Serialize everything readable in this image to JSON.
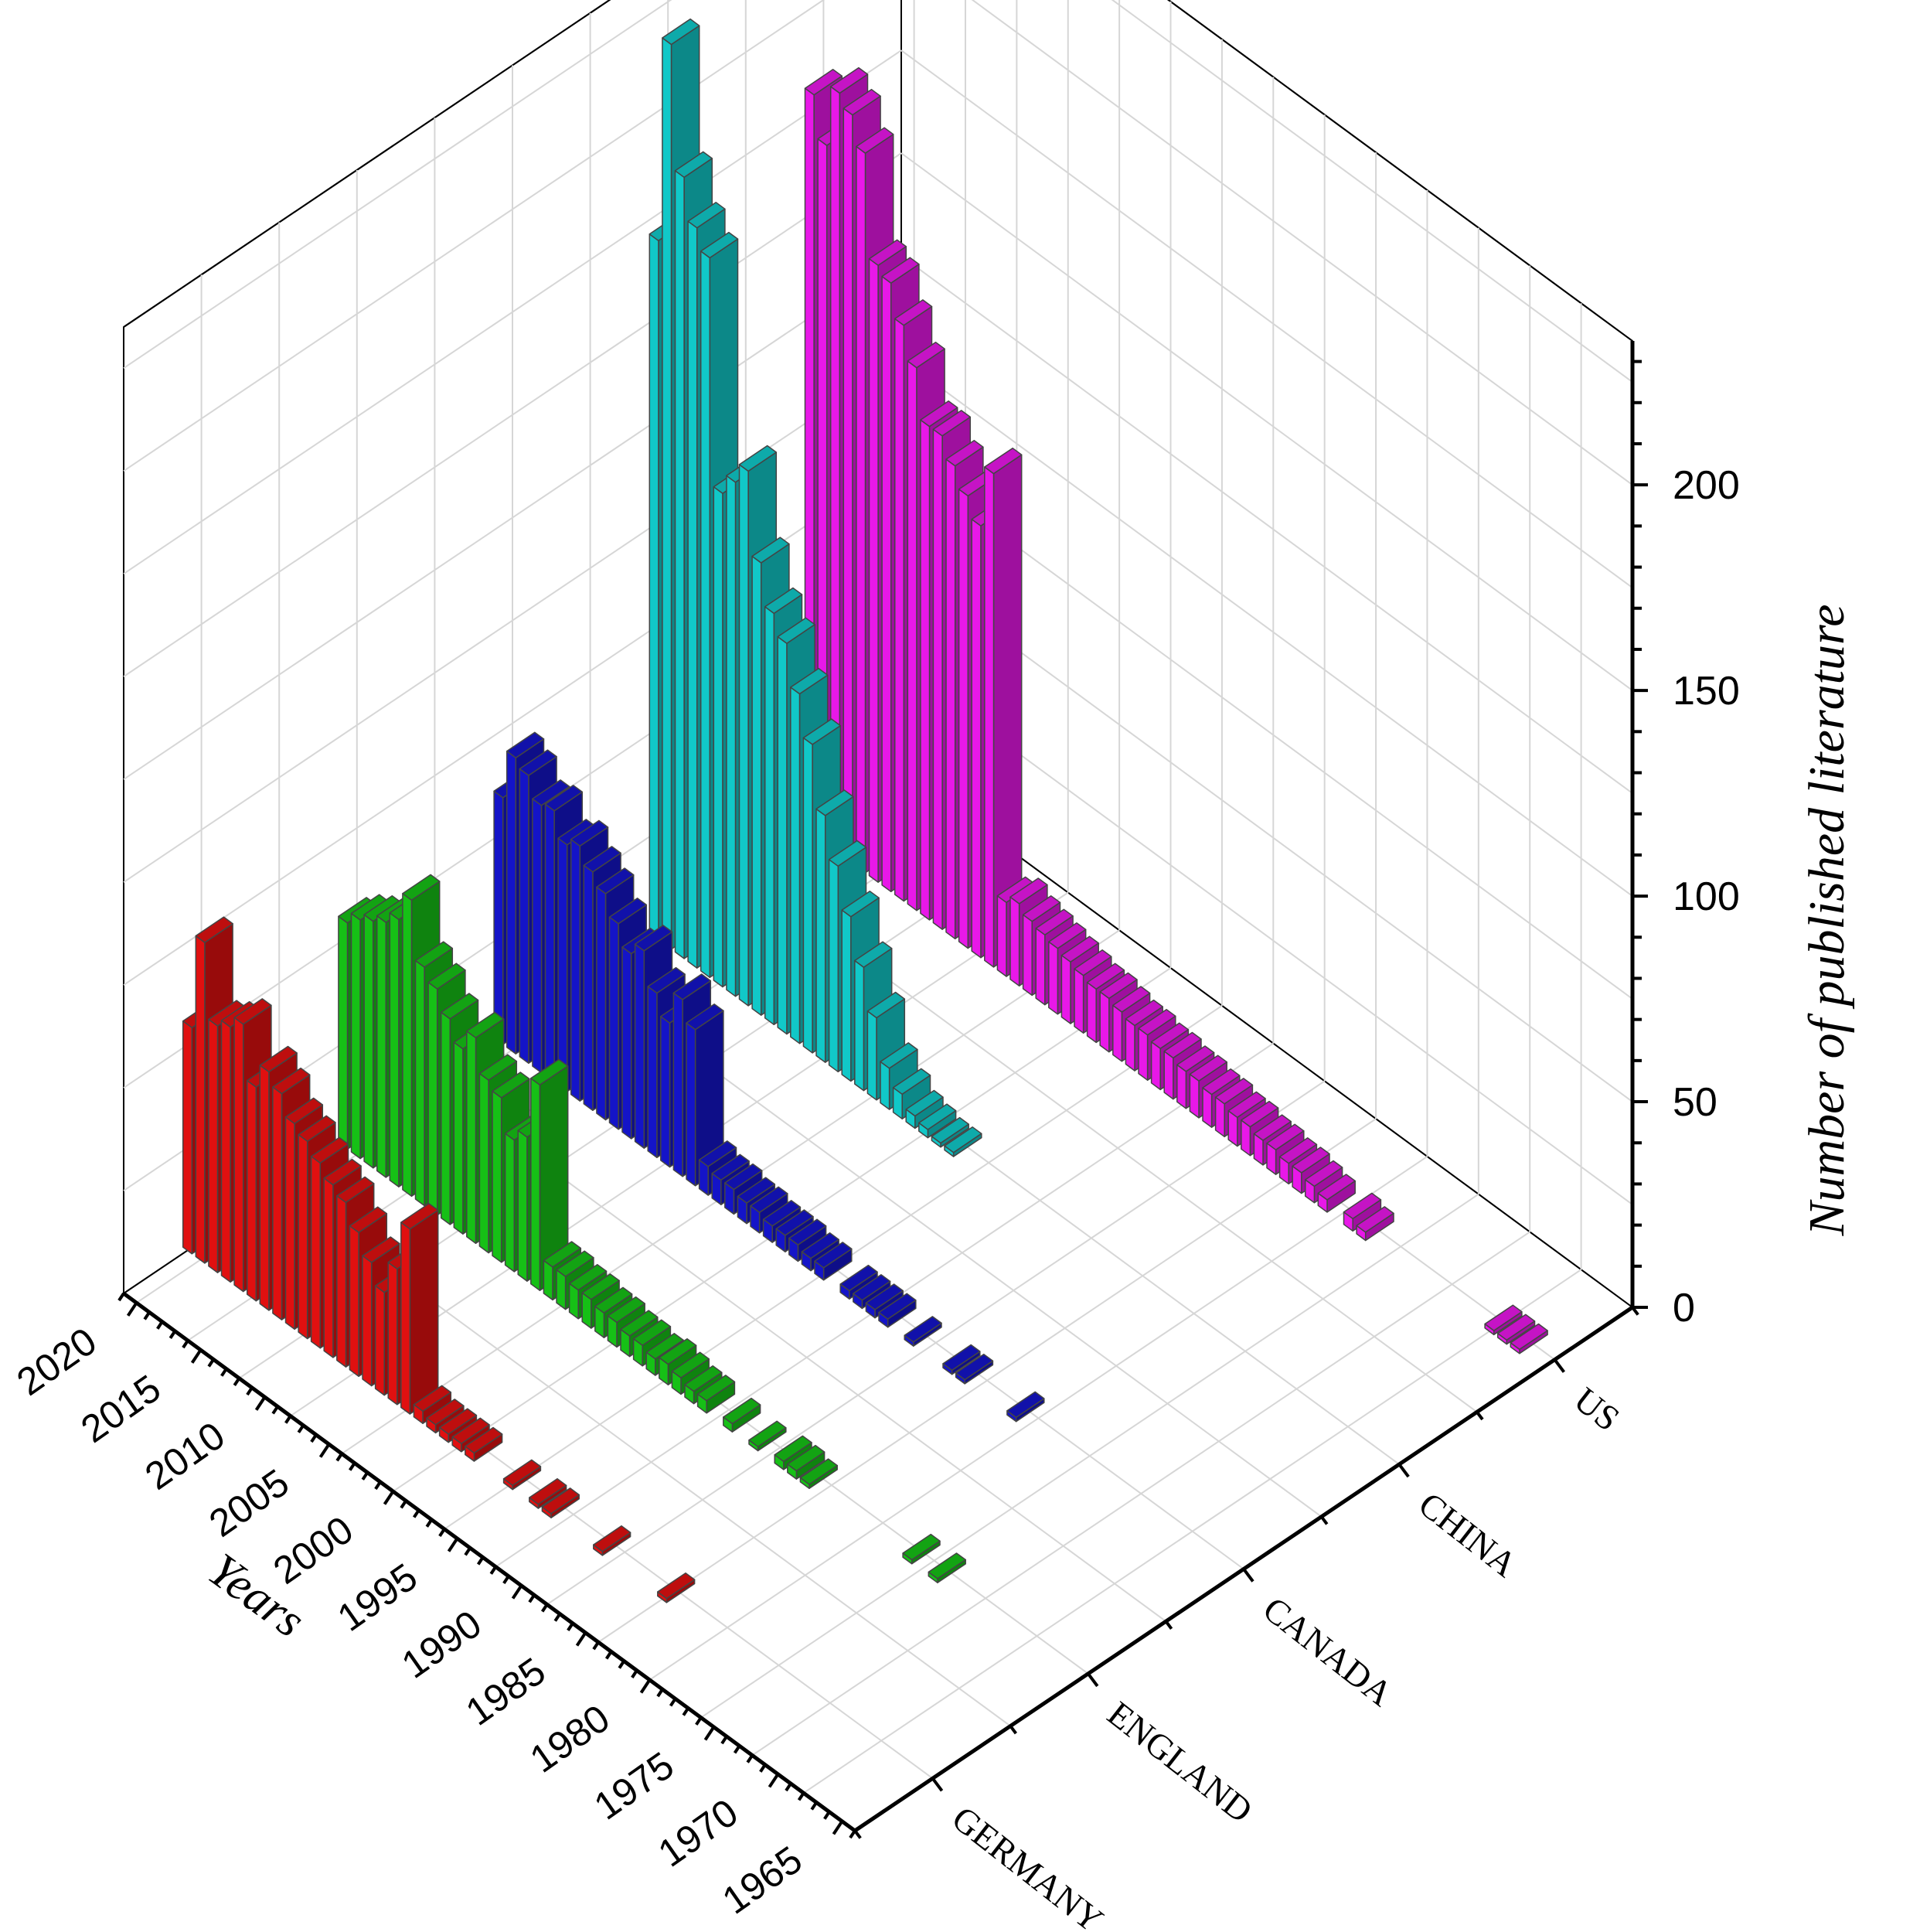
{
  "chart_data": {
    "type": "bar",
    "title": "",
    "xlabel": "Years",
    "ylabel": "",
    "zlabel": "Number of published literature",
    "x_ticks": [
      "1965",
      "1970",
      "1975",
      "1980",
      "1985",
      "1990",
      "1995",
      "2000",
      "2005",
      "2010",
      "2015",
      "2020"
    ],
    "z_ticks": [
      "0",
      "50",
      "100",
      "150",
      "200"
    ],
    "categories": [
      "GERMANY",
      "ENGLAND",
      "CANADA",
      "CHINA",
      "US"
    ],
    "xlim": [
      1964,
      2021
    ],
    "zlim": [
      0,
      235
    ],
    "grid": true,
    "series": [
      {
        "name": "GERMANY",
        "color": "#e01010",
        "points": [
          {
            "x": 2021,
            "y": 55
          },
          {
            "x": 2020,
            "y": 78
          },
          {
            "x": 2019,
            "y": 60
          },
          {
            "x": 2018,
            "y": 62
          },
          {
            "x": 2017,
            "y": 65
          },
          {
            "x": 2016,
            "y": 52
          },
          {
            "x": 2015,
            "y": 58
          },
          {
            "x": 2014,
            "y": 55
          },
          {
            "x": 2013,
            "y": 50
          },
          {
            "x": 2012,
            "y": 48
          },
          {
            "x": 2011,
            "y": 45
          },
          {
            "x": 2010,
            "y": 42
          },
          {
            "x": 2009,
            "y": 40
          },
          {
            "x": 2008,
            "y": 35
          },
          {
            "x": 2007,
            "y": 30
          },
          {
            "x": 2006,
            "y": 25
          },
          {
            "x": 2005,
            "y": 33
          },
          {
            "x": 2004,
            "y": 45
          },
          {
            "x": 2003,
            "y": 3
          },
          {
            "x": 2002,
            "y": 2
          },
          {
            "x": 2001,
            "y": 2
          },
          {
            "x": 2000,
            "y": 2
          },
          {
            "x": 1999,
            "y": 2
          },
          {
            "x": 1996,
            "y": 1
          },
          {
            "x": 1994,
            "y": 1
          },
          {
            "x": 1993,
            "y": 1
          },
          {
            "x": 1989,
            "y": 1
          },
          {
            "x": 1984,
            "y": 1
          }
        ]
      },
      {
        "name": "ENGLAND",
        "color": "#16c016",
        "points": [
          {
            "x": 2021,
            "y": 55
          },
          {
            "x": 2020,
            "y": 58
          },
          {
            "x": 2019,
            "y": 60
          },
          {
            "x": 2018,
            "y": 62
          },
          {
            "x": 2017,
            "y": 65
          },
          {
            "x": 2016,
            "y": 72
          },
          {
            "x": 2015,
            "y": 58
          },
          {
            "x": 2014,
            "y": 55
          },
          {
            "x": 2013,
            "y": 50
          },
          {
            "x": 2012,
            "y": 45
          },
          {
            "x": 2011,
            "y": 50
          },
          {
            "x": 2010,
            "y": 42
          },
          {
            "x": 2009,
            "y": 40
          },
          {
            "x": 2008,
            "y": 32
          },
          {
            "x": 2007,
            "y": 35
          },
          {
            "x": 2006,
            "y": 50
          },
          {
            "x": 2005,
            "y": 8
          },
          {
            "x": 2004,
            "y": 8
          },
          {
            "x": 2003,
            "y": 7
          },
          {
            "x": 2002,
            "y": 7
          },
          {
            "x": 2001,
            "y": 6
          },
          {
            "x": 2000,
            "y": 6
          },
          {
            "x": 1999,
            "y": 5
          },
          {
            "x": 1998,
            "y": 5
          },
          {
            "x": 1997,
            "y": 4
          },
          {
            "x": 1996,
            "y": 5
          },
          {
            "x": 1995,
            "y": 4
          },
          {
            "x": 1994,
            "y": 3
          },
          {
            "x": 1993,
            "y": 3
          },
          {
            "x": 1991,
            "y": 2
          },
          {
            "x": 1989,
            "y": 1
          },
          {
            "x": 1987,
            "y": 2
          },
          {
            "x": 1986,
            "y": 2
          },
          {
            "x": 1985,
            "y": 1
          },
          {
            "x": 1977,
            "y": 1
          },
          {
            "x": 1975,
            "y": 1
          }
        ]
      },
      {
        "name": "CANADA",
        "color": "#1414c8",
        "points": [
          {
            "x": 2021,
            "y": 60
          },
          {
            "x": 2020,
            "y": 72
          },
          {
            "x": 2019,
            "y": 70
          },
          {
            "x": 2018,
            "y": 65
          },
          {
            "x": 2017,
            "y": 66
          },
          {
            "x": 2016,
            "y": 60
          },
          {
            "x": 2015,
            "y": 62
          },
          {
            "x": 2014,
            "y": 58
          },
          {
            "x": 2013,
            "y": 55
          },
          {
            "x": 2012,
            "y": 50
          },
          {
            "x": 2011,
            "y": 45
          },
          {
            "x": 2010,
            "y": 48
          },
          {
            "x": 2009,
            "y": 40
          },
          {
            "x": 2008,
            "y": 35
          },
          {
            "x": 2007,
            "y": 43
          },
          {
            "x": 2006,
            "y": 38
          },
          {
            "x": 2005,
            "y": 7
          },
          {
            "x": 2004,
            "y": 6
          },
          {
            "x": 2003,
            "y": 6
          },
          {
            "x": 2002,
            "y": 5
          },
          {
            "x": 2001,
            "y": 5
          },
          {
            "x": 2000,
            "y": 4
          },
          {
            "x": 1999,
            "y": 4
          },
          {
            "x": 1998,
            "y": 4
          },
          {
            "x": 1997,
            "y": 3
          },
          {
            "x": 1996,
            "y": 3
          },
          {
            "x": 1994,
            "y": 2
          },
          {
            "x": 1993,
            "y": 2
          },
          {
            "x": 1992,
            "y": 2
          },
          {
            "x": 1991,
            "y": 2
          },
          {
            "x": 1989,
            "y": 1
          },
          {
            "x": 1986,
            "y": 1
          },
          {
            "x": 1985,
            "y": 1
          },
          {
            "x": 1981,
            "y": 1
          }
        ]
      },
      {
        "name": "CHINA",
        "color": "#11c8c8",
        "points": [
          {
            "x": 2021,
            "y": 170
          },
          {
            "x": 2020,
            "y": 220
          },
          {
            "x": 2019,
            "y": 190
          },
          {
            "x": 2018,
            "y": 180
          },
          {
            "x": 2017,
            "y": 175
          },
          {
            "x": 2016,
            "y": 120
          },
          {
            "x": 2015,
            "y": 125
          },
          {
            "x": 2014,
            "y": 130
          },
          {
            "x": 2013,
            "y": 110
          },
          {
            "x": 2012,
            "y": 100
          },
          {
            "x": 2011,
            "y": 95
          },
          {
            "x": 2010,
            "y": 85
          },
          {
            "x": 2009,
            "y": 75
          },
          {
            "x": 2008,
            "y": 60
          },
          {
            "x": 2007,
            "y": 50
          },
          {
            "x": 2006,
            "y": 40
          },
          {
            "x": 2005,
            "y": 30
          },
          {
            "x": 2004,
            "y": 20
          },
          {
            "x": 2003,
            "y": 10
          },
          {
            "x": 2002,
            "y": 6
          },
          {
            "x": 2001,
            "y": 3
          },
          {
            "x": 2000,
            "y": 2
          },
          {
            "x": 1999,
            "y": 1
          },
          {
            "x": 1998,
            "y": 1
          }
        ]
      },
      {
        "name": "US",
        "color": "#e818e8",
        "points": [
          {
            "x": 2021,
            "y": 180
          },
          {
            "x": 2020,
            "y": 170
          },
          {
            "x": 2019,
            "y": 185
          },
          {
            "x": 2018,
            "y": 182
          },
          {
            "x": 2017,
            "y": 175
          },
          {
            "x": 2016,
            "y": 150
          },
          {
            "x": 2015,
            "y": 148
          },
          {
            "x": 2014,
            "y": 140
          },
          {
            "x": 2013,
            "y": 132
          },
          {
            "x": 2012,
            "y": 120
          },
          {
            "x": 2011,
            "y": 120
          },
          {
            "x": 2010,
            "y": 115
          },
          {
            "x": 2009,
            "y": 110
          },
          {
            "x": 2008,
            "y": 105
          },
          {
            "x": 2007,
            "y": 120
          },
          {
            "x": 2006,
            "y": 18
          },
          {
            "x": 2005,
            "y": 20
          },
          {
            "x": 2004,
            "y": 18
          },
          {
            "x": 2003,
            "y": 17
          },
          {
            "x": 2002,
            "y": 16
          },
          {
            "x": 2001,
            "y": 15
          },
          {
            "x": 2000,
            "y": 14
          },
          {
            "x": 1999,
            "y": 13
          },
          {
            "x": 1998,
            "y": 13
          },
          {
            "x": 1997,
            "y": 12
          },
          {
            "x": 1996,
            "y": 11
          },
          {
            "x": 1995,
            "y": 11
          },
          {
            "x": 1994,
            "y": 10
          },
          {
            "x": 1993,
            "y": 10
          },
          {
            "x": 1992,
            "y": 9
          },
          {
            "x": 1991,
            "y": 9
          },
          {
            "x": 1990,
            "y": 8
          },
          {
            "x": 1989,
            "y": 8
          },
          {
            "x": 1988,
            "y": 7
          },
          {
            "x": 1987,
            "y": 7
          },
          {
            "x": 1986,
            "y": 6
          },
          {
            "x": 1985,
            "y": 6
          },
          {
            "x": 1984,
            "y": 5
          },
          {
            "x": 1983,
            "y": 5
          },
          {
            "x": 1982,
            "y": 4
          },
          {
            "x": 1981,
            "y": 3
          },
          {
            "x": 1979,
            "y": 3
          },
          {
            "x": 1978,
            "y": 2
          },
          {
            "x": 1968,
            "y": 1
          },
          {
            "x": 1967,
            "y": 1
          },
          {
            "x": 1966,
            "y": 1
          }
        ]
      }
    ]
  }
}
